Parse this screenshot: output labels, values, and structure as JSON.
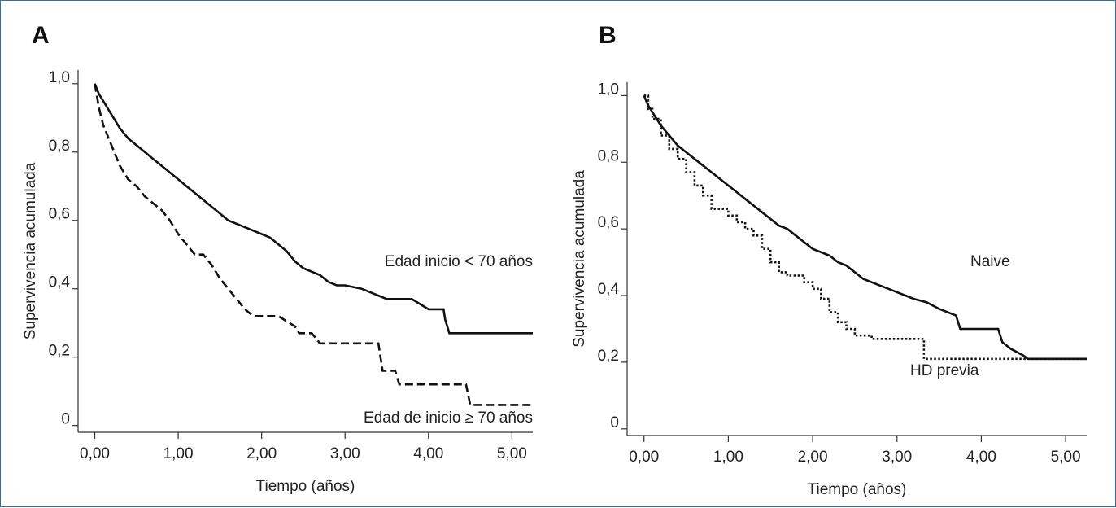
{
  "colors": {
    "border": "#2d6db5",
    "curve": "#111111",
    "text": "#222222"
  },
  "chart_data": [
    {
      "type": "line",
      "panel_label": "A",
      "xlabel": "Tiempo (años)",
      "ylabel": "Supervivencia acumulada",
      "xlim": [
        -0.2,
        5.25
      ],
      "ylim": [
        -0.02,
        1.04
      ],
      "x_ticks": [
        "0,00",
        "1,00",
        "2,00",
        "3,00",
        "4,00",
        "5,00"
      ],
      "y_ticks": [
        "0",
        "0,2",
        "0,4",
        "0,6",
        "0,8",
        "1,0"
      ],
      "grid": false,
      "series": [
        {
          "label": "Edad inicio < 70 años",
          "style": "solid",
          "step": false,
          "x": [
            0,
            0.05,
            0.1,
            0.2,
            0.3,
            0.4,
            0.5,
            0.6,
            0.7,
            0.8,
            0.9,
            1.0,
            1.1,
            1.2,
            1.3,
            1.4,
            1.5,
            1.6,
            1.7,
            1.8,
            1.9,
            2.0,
            2.1,
            2.2,
            2.3,
            2.4,
            2.5,
            2.6,
            2.7,
            2.8,
            2.9,
            3.0,
            3.2,
            3.5,
            3.8,
            4.0,
            4.18,
            4.2,
            4.25,
            5.25
          ],
          "y": [
            1.0,
            0.97,
            0.95,
            0.91,
            0.87,
            0.84,
            0.82,
            0.8,
            0.78,
            0.76,
            0.74,
            0.72,
            0.7,
            0.68,
            0.66,
            0.64,
            0.62,
            0.6,
            0.59,
            0.58,
            0.57,
            0.56,
            0.55,
            0.53,
            0.51,
            0.48,
            0.46,
            0.45,
            0.44,
            0.42,
            0.41,
            0.41,
            0.4,
            0.37,
            0.37,
            0.34,
            0.34,
            0.31,
            0.27,
            0.27
          ]
        },
        {
          "label": "Edad de inicio ≥ 70 años",
          "style": "dashed",
          "step": false,
          "x": [
            0,
            0.05,
            0.1,
            0.2,
            0.3,
            0.4,
            0.5,
            0.6,
            0.7,
            0.8,
            0.9,
            1.0,
            1.1,
            1.2,
            1.3,
            1.4,
            1.5,
            1.6,
            1.7,
            1.8,
            1.9,
            2.0,
            2.2,
            2.4,
            2.45,
            2.6,
            2.7,
            3.4,
            3.45,
            3.6,
            3.65,
            4.45,
            4.5,
            5.25
          ],
          "y": [
            1.0,
            0.93,
            0.88,
            0.82,
            0.76,
            0.72,
            0.7,
            0.67,
            0.65,
            0.63,
            0.6,
            0.56,
            0.53,
            0.5,
            0.5,
            0.47,
            0.43,
            0.4,
            0.37,
            0.34,
            0.32,
            0.32,
            0.32,
            0.29,
            0.27,
            0.27,
            0.24,
            0.24,
            0.16,
            0.16,
            0.12,
            0.12,
            0.06,
            0.06
          ]
        }
      ]
    },
    {
      "type": "line",
      "panel_label": "B",
      "xlabel": "Tiempo (años)",
      "ylabel": "Supervivencia acumulada",
      "xlim": [
        -0.2,
        5.25
      ],
      "ylim": [
        -0.02,
        1.04
      ],
      "x_ticks": [
        "0,00",
        "1,00",
        "2,00",
        "3,00",
        "4,00",
        "5,00"
      ],
      "y_ticks": [
        "0",
        "0,2",
        "0,4",
        "0,6",
        "0,8",
        "1,0"
      ],
      "grid": false,
      "series": [
        {
          "label": "Naive",
          "style": "solid",
          "step": false,
          "x": [
            0,
            0.05,
            0.1,
            0.2,
            0.3,
            0.4,
            0.5,
            0.6,
            0.7,
            0.8,
            0.9,
            1.0,
            1.1,
            1.2,
            1.3,
            1.4,
            1.5,
            1.6,
            1.7,
            1.8,
            1.9,
            2.0,
            2.1,
            2.2,
            2.3,
            2.4,
            2.5,
            2.6,
            2.7,
            2.8,
            2.9,
            3.0,
            3.2,
            3.35,
            3.5,
            3.7,
            3.75,
            4.2,
            4.25,
            4.35,
            4.5,
            4.55,
            5.25
          ],
          "y": [
            1.0,
            0.97,
            0.95,
            0.91,
            0.88,
            0.85,
            0.83,
            0.81,
            0.79,
            0.77,
            0.75,
            0.73,
            0.71,
            0.69,
            0.67,
            0.65,
            0.63,
            0.61,
            0.6,
            0.58,
            0.56,
            0.54,
            0.53,
            0.52,
            0.5,
            0.49,
            0.47,
            0.45,
            0.44,
            0.43,
            0.42,
            0.41,
            0.39,
            0.38,
            0.36,
            0.34,
            0.3,
            0.3,
            0.26,
            0.24,
            0.22,
            0.21,
            0.21
          ]
        },
        {
          "label": "HD previa",
          "style": "dotted",
          "step": true,
          "x": [
            0,
            0.05,
            0.1,
            0.2,
            0.3,
            0.4,
            0.5,
            0.6,
            0.7,
            0.8,
            0.9,
            1.0,
            1.1,
            1.2,
            1.3,
            1.4,
            1.5,
            1.6,
            1.7,
            1.8,
            1.9,
            2.0,
            2.1,
            2.2,
            2.3,
            2.4,
            2.5,
            2.6,
            2.7,
            2.8,
            3.3,
            3.32,
            5.25
          ],
          "y": [
            1.0,
            0.96,
            0.93,
            0.88,
            0.84,
            0.81,
            0.77,
            0.73,
            0.7,
            0.66,
            0.66,
            0.64,
            0.62,
            0.6,
            0.58,
            0.54,
            0.5,
            0.47,
            0.46,
            0.46,
            0.44,
            0.42,
            0.39,
            0.35,
            0.32,
            0.3,
            0.28,
            0.28,
            0.27,
            0.27,
            0.27,
            0.21,
            0.21
          ]
        }
      ]
    }
  ]
}
